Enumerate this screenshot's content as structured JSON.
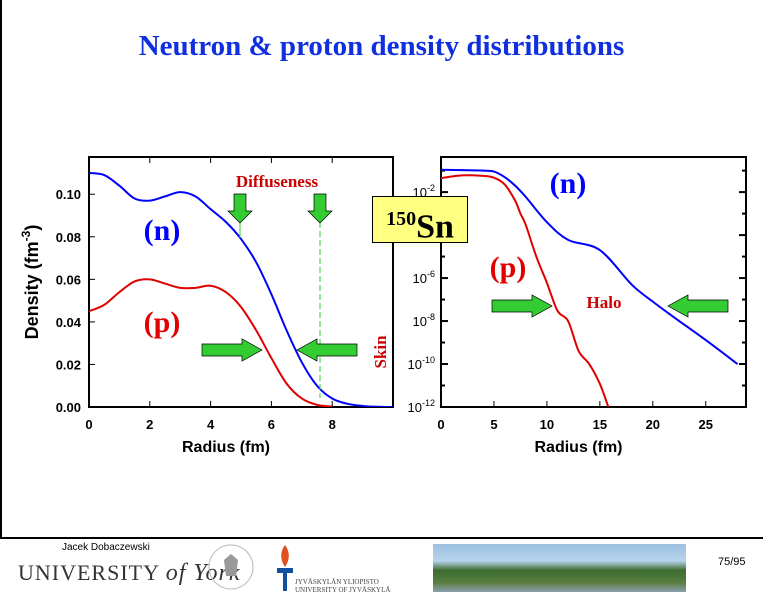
{
  "title": "Neutron & proton density distributions",
  "nucleus": {
    "mass": "150",
    "symbol": "Sn"
  },
  "footer": {
    "author": "Jacek Dobaczewski",
    "york": "UNIVERSITY",
    "york_of": "of York",
    "jyu_fi": "JYVÄSKYLÄN YLIOPISTO",
    "jyu_en": "UNIVERSITY OF JYVÄSKYLÄ",
    "page": "75/95"
  },
  "colors": {
    "neutron": "#0000ff",
    "proton": "#e00000",
    "arrow": "#33cc33",
    "title": "#1030e0"
  },
  "chart_data": [
    {
      "type": "line",
      "xlabel": "Radius (fm)",
      "ylabel": "Density (fm-3)",
      "xlim": [
        0,
        10
      ],
      "ylim": [
        0,
        0.1175
      ],
      "xticks": [
        0,
        2,
        4,
        6,
        8
      ],
      "yticks": [
        "0.00",
        "0.02",
        "0.04",
        "0.06",
        "0.08",
        "0.10"
      ],
      "annotations": [
        "Diffuseness",
        "Skin",
        "(n)",
        "(p)"
      ],
      "series": [
        {
          "name": "(n)",
          "color": "#0000ff",
          "x": [
            0,
            0.5,
            1,
            1.5,
            2,
            2.5,
            3,
            3.5,
            4,
            4.5,
            5,
            5.5,
            6,
            6.5,
            7,
            7.5,
            8,
            8.5,
            9,
            9.5,
            10
          ],
          "y": [
            0.11,
            0.109,
            0.104,
            0.098,
            0.097,
            0.099,
            0.101,
            0.099,
            0.093,
            0.087,
            0.079,
            0.068,
            0.053,
            0.036,
            0.021,
            0.01,
            0.004,
            0.0015,
            0.0005,
            0.0001,
            0
          ]
        },
        {
          "name": "(p)",
          "color": "#e00000",
          "x": [
            0,
            0.5,
            1,
            1.5,
            2,
            2.5,
            3,
            3.5,
            4,
            4.5,
            5,
            5.5,
            6,
            6.5,
            7,
            7.5,
            8
          ],
          "y": [
            0.045,
            0.048,
            0.054,
            0.059,
            0.06,
            0.058,
            0.056,
            0.056,
            0.057,
            0.054,
            0.047,
            0.036,
            0.023,
            0.011,
            0.004,
            0.001,
            0.0002
          ]
        }
      ]
    },
    {
      "type": "line",
      "xlabel": "Radius (fm)",
      "yscale": "log",
      "xlim": [
        0,
        28.8
      ],
      "ylim": [
        1e-12,
        0.43
      ],
      "xticks": [
        0,
        5,
        10,
        15,
        20,
        25
      ],
      "yticks": [
        -12,
        -10,
        -8,
        -6,
        -2
      ],
      "annotations": [
        "Halo",
        "(n)",
        "(p)"
      ],
      "series": [
        {
          "name": "(n)",
          "color": "#0000ff",
          "x": [
            0,
            2,
            4,
            5,
            6,
            7,
            8,
            10,
            12,
            15,
            18,
            20,
            22,
            25,
            28
          ],
          "y": [
            0.11,
            0.105,
            0.1,
            0.09,
            0.05,
            0.02,
            0.006,
            0.0004,
            6e-05,
            2e-05,
            5e-07,
            8e-08,
            1.5e-08,
            1.3e-09,
            1e-10
          ]
        },
        {
          "name": "(p)",
          "color": "#e00000",
          "x": [
            0,
            2,
            4,
            5,
            6,
            7,
            7.5,
            8,
            9,
            10,
            11,
            12,
            13,
            14,
            15,
            15.8
          ],
          "y": [
            0.045,
            0.06,
            0.057,
            0.047,
            0.023,
            0.004,
            0.001,
            0.0003,
            1e-05,
            6e-07,
            3e-08,
            1e-08,
            4e-10,
            1e-10,
            1.2e-11,
            1e-12
          ]
        }
      ]
    }
  ]
}
